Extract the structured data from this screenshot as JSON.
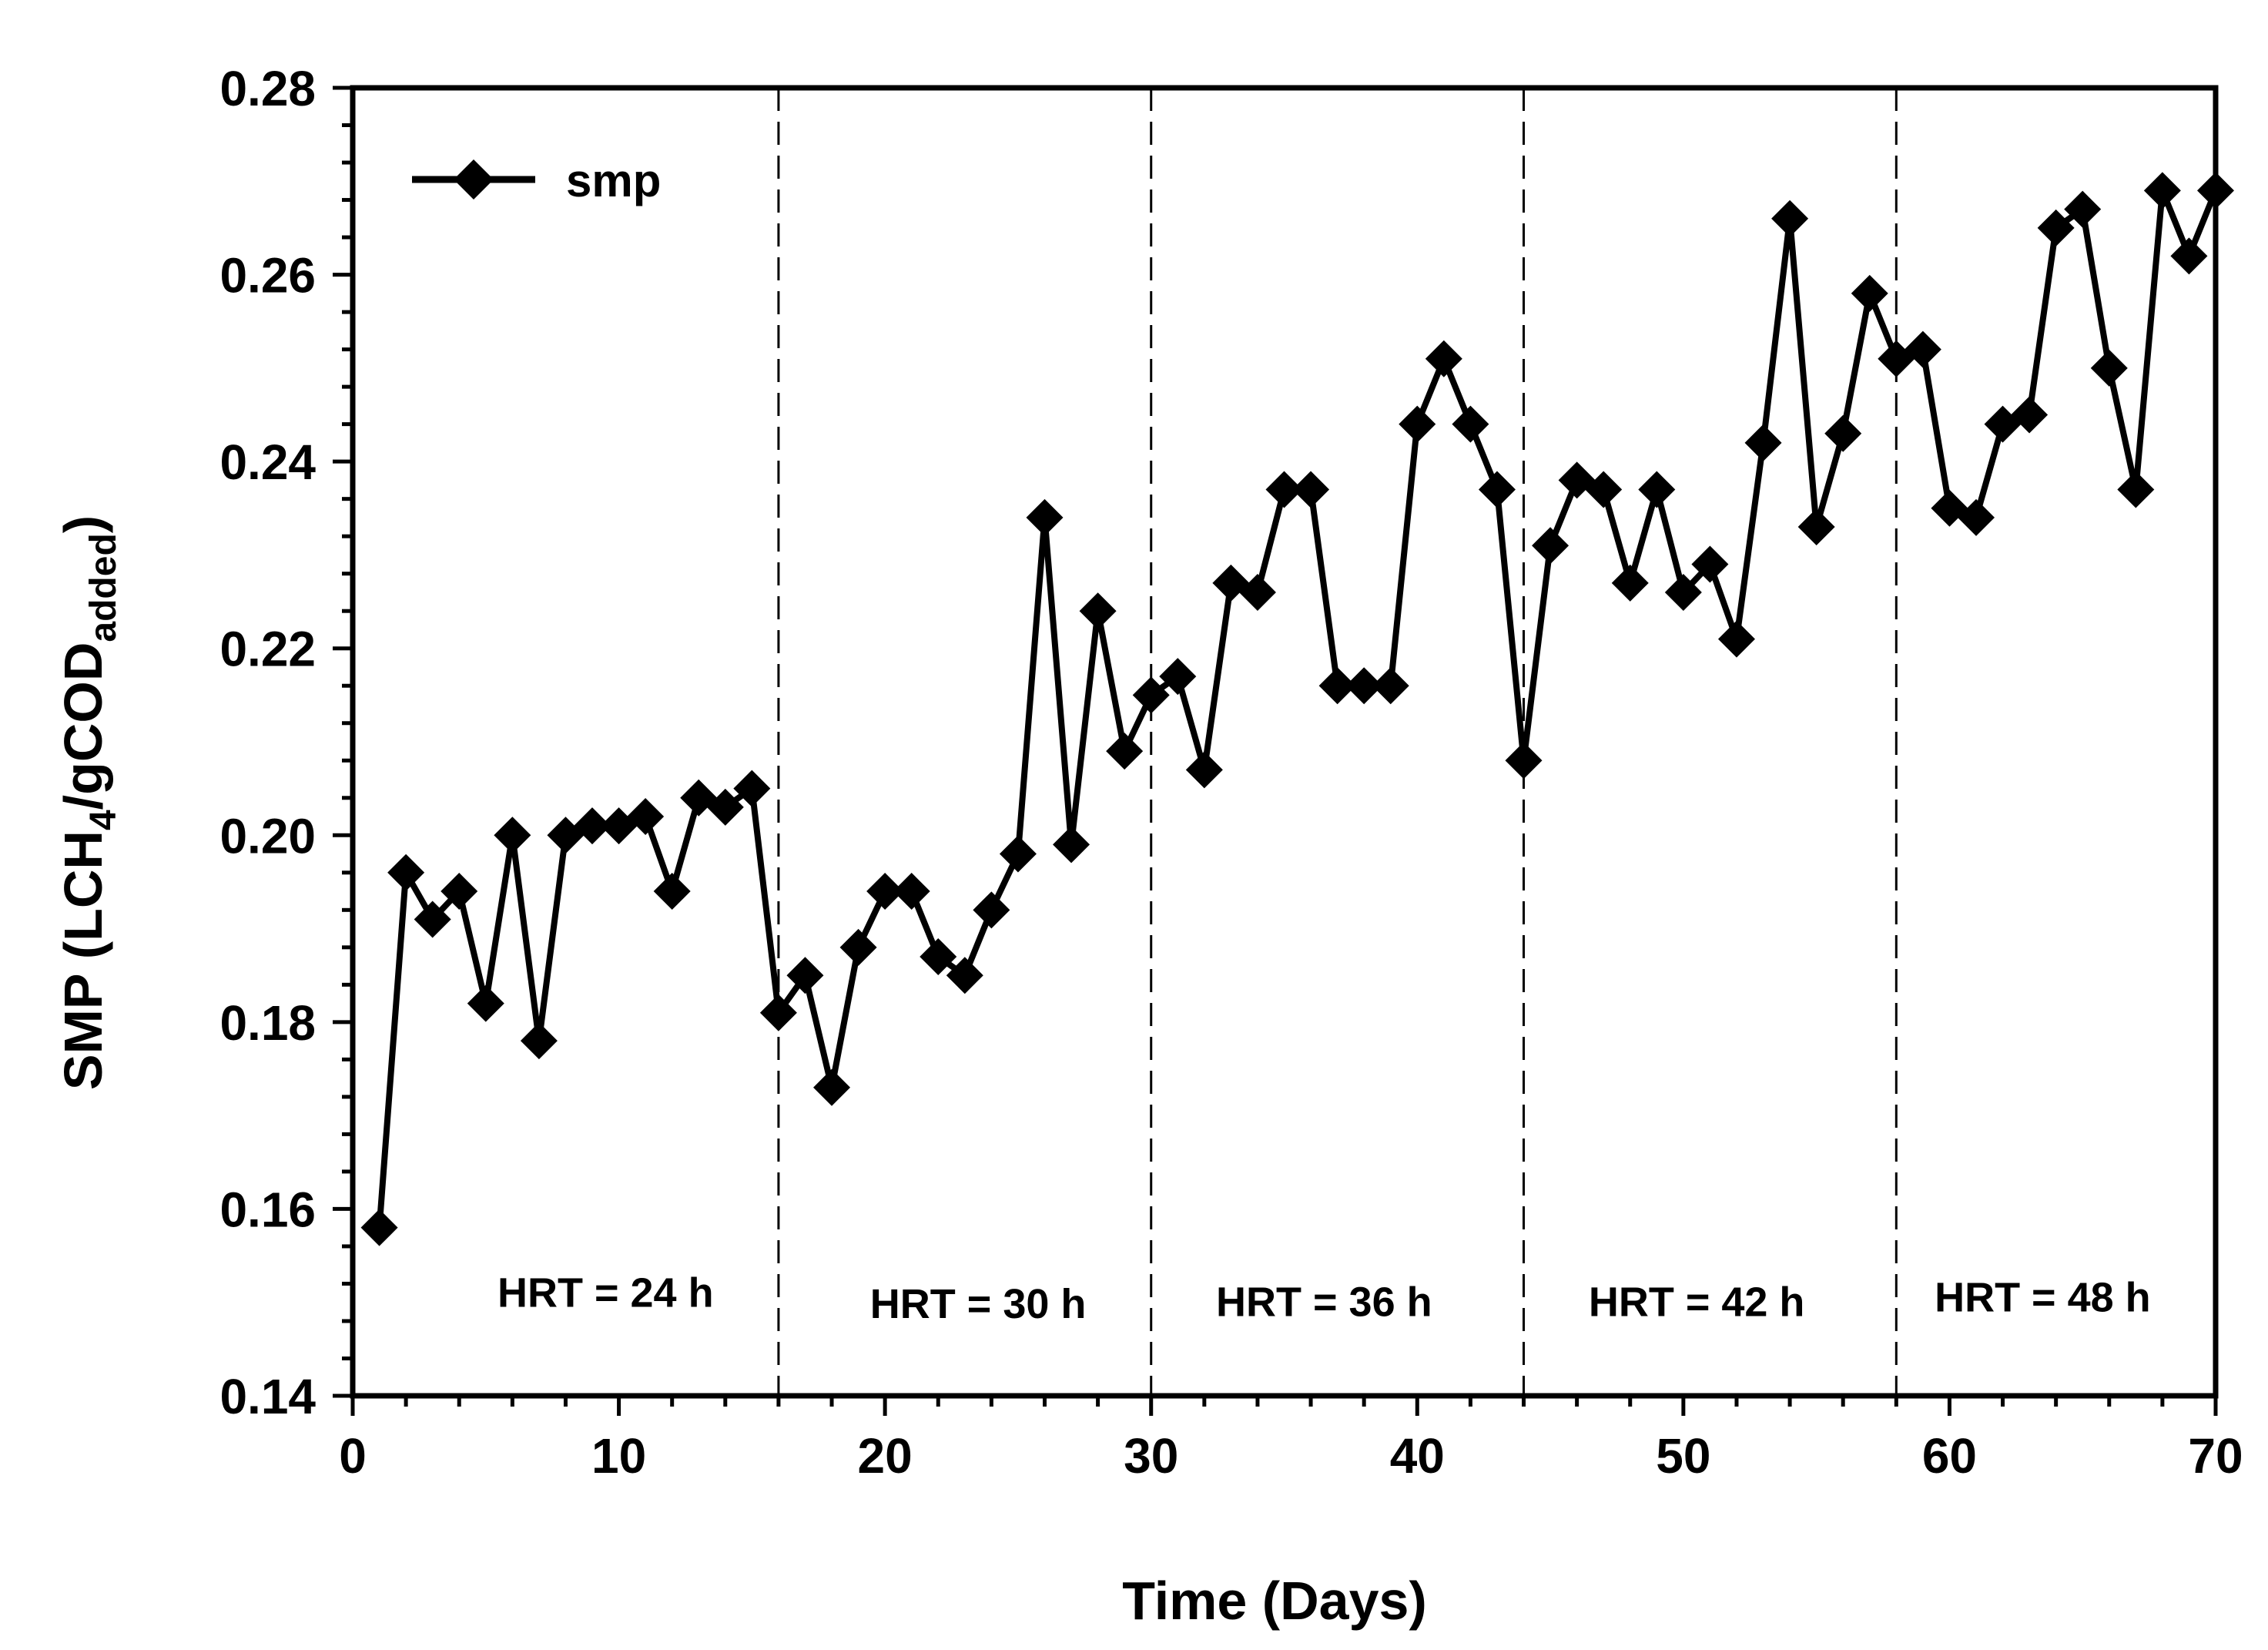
{
  "chart_data": {
    "type": "line",
    "title": "",
    "xlabel": "Time (Days)",
    "ylabel": {
      "prefix": "SMP (LCH",
      "sub1": "4",
      "middle": "/gCOD",
      "sub2": "added",
      "suffix": ")"
    },
    "xlim": [
      0,
      70
    ],
    "ylim": [
      0.14,
      0.28
    ],
    "xticks": [
      0,
      10,
      20,
      30,
      40,
      50,
      60,
      70
    ],
    "xtick_labels": [
      "0",
      "10",
      "20",
      "30",
      "40",
      "50",
      "60",
      "70"
    ],
    "yticks": [
      0.14,
      0.16,
      0.18,
      0.2,
      0.22,
      0.24,
      0.26,
      0.28
    ],
    "ytick_labels": [
      "0.14",
      "0.16",
      "0.18",
      "0.20",
      "0.22",
      "0.24",
      "0.26",
      "0.28"
    ],
    "legend": {
      "label": "smp",
      "position": "top-left"
    },
    "series": [
      {
        "name": "smp",
        "color": "#000000",
        "marker": "diamond",
        "x": [
          1,
          2,
          3,
          4,
          5,
          6,
          7,
          8,
          9,
          10,
          11,
          12,
          13,
          14,
          15,
          16,
          17,
          18,
          19,
          20,
          21,
          22,
          23,
          24,
          25,
          26,
          27,
          28,
          29,
          30,
          31,
          32,
          33,
          34,
          35,
          36,
          37,
          38,
          39,
          40,
          41,
          42,
          43,
          44,
          45,
          46,
          47,
          48,
          49,
          50,
          51,
          52,
          53,
          54,
          55,
          56,
          57,
          58,
          59,
          60,
          61,
          62,
          63,
          64,
          65,
          66,
          67,
          68,
          69,
          70
        ],
        "y": [
          0.158,
          0.196,
          0.191,
          0.194,
          0.182,
          0.2,
          0.178,
          0.2,
          0.201,
          0.201,
          0.202,
          0.194,
          0.204,
          0.203,
          0.205,
          0.181,
          0.185,
          0.173,
          0.188,
          0.194,
          0.194,
          0.187,
          0.185,
          0.192,
          0.198,
          0.234,
          0.199,
          0.224,
          0.209,
          0.215,
          0.217,
          0.207,
          0.227,
          0.226,
          0.237,
          0.237,
          0.216,
          0.216,
          0.216,
          0.244,
          0.251,
          0.244,
          0.237,
          0.208,
          0.231,
          0.238,
          0.237,
          0.227,
          0.237,
          0.226,
          0.229,
          0.221,
          0.242,
          0.266,
          0.233,
          0.243,
          0.258,
          0.251,
          0.252,
          0.235,
          0.234,
          0.244,
          0.245,
          0.265,
          0.267,
          0.25,
          0.237,
          0.269,
          0.262,
          0.269
        ]
      }
    ],
    "dividers": [
      16,
      30,
      44,
      58
    ],
    "regions": [
      {
        "label": "HRT = 24 h",
        "x_center": 9.5,
        "y": 0.151
      },
      {
        "label": "HRT = 30 h",
        "x_center": 23.5,
        "y": 0.1498
      },
      {
        "label": "HRT = 36 h",
        "x_center": 36.5,
        "y": 0.15
      },
      {
        "label": "HRT = 42 h",
        "x_center": 50.5,
        "y": 0.15
      },
      {
        "label": "HRT = 48 h",
        "x_center": 63.5,
        "y": 0.1505
      }
    ]
  }
}
